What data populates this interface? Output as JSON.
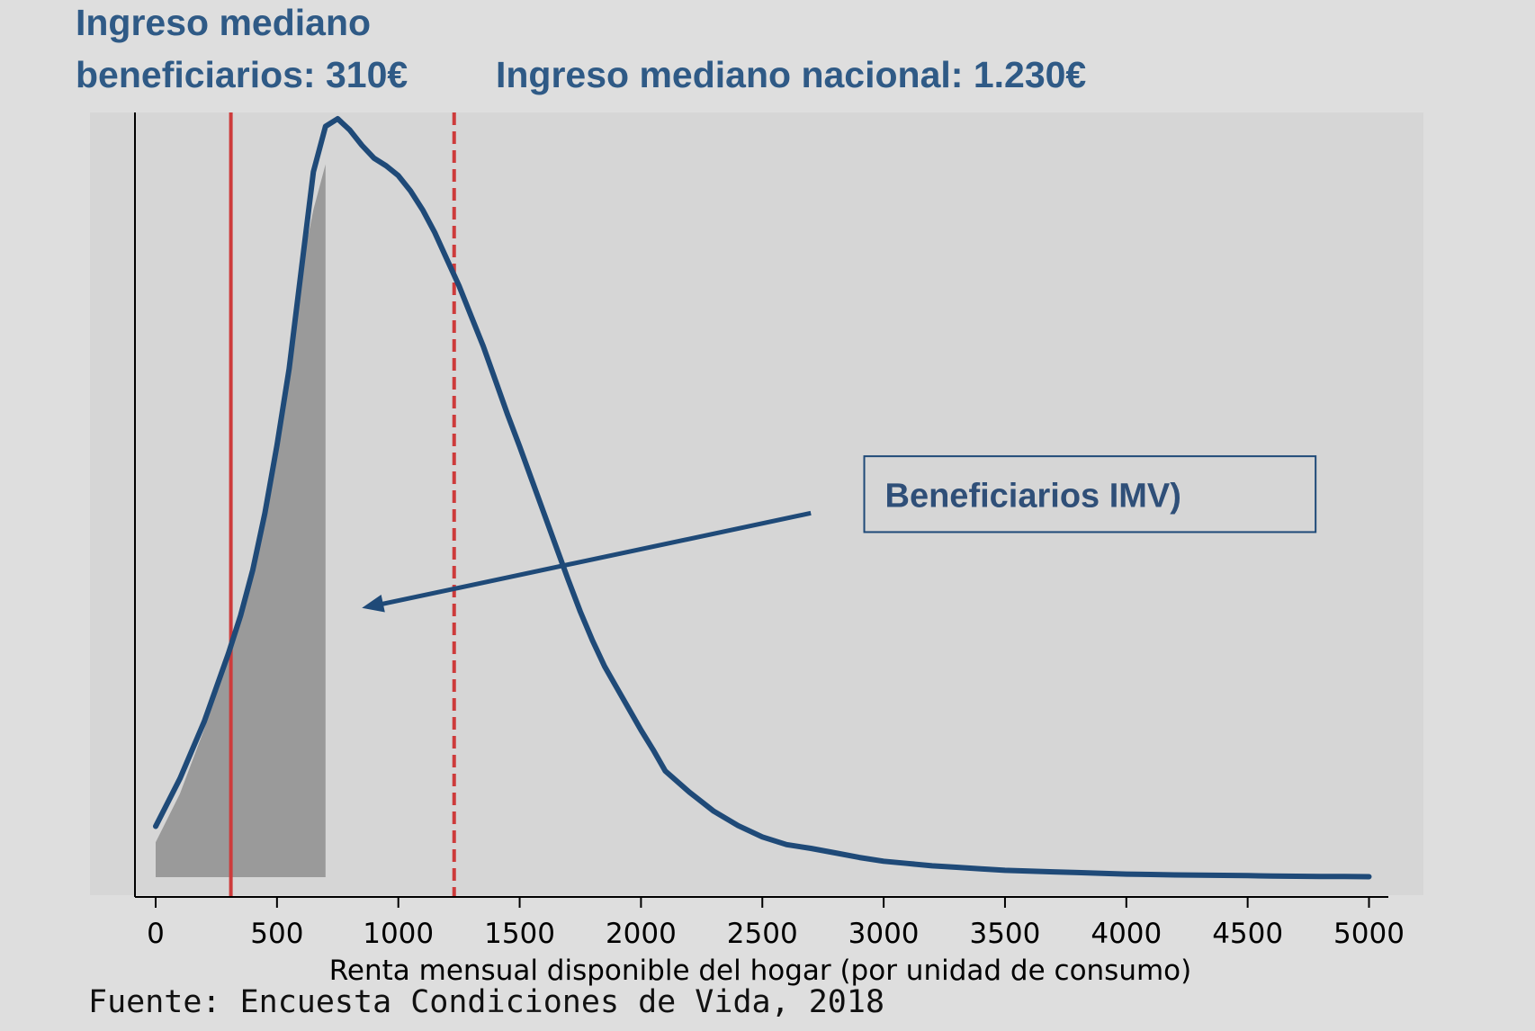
{
  "header": {
    "beneficiarios_line1": "Ingreso mediano",
    "beneficiarios_line2": "beneficiarios: 310€",
    "nacional": "Ingreso mediano nacional: 1.230€"
  },
  "annotation": {
    "label": "Beneficiarios IMV)"
  },
  "source": "Fuente: Encuesta Condiciones de Vida, 2018",
  "colors": {
    "background": "#dedede",
    "plot_background": "#d6d6d6",
    "curve": "#1f4a78",
    "median_lines": "#cd3b3b",
    "shaded_area": "#9a9a9a",
    "title_text": "#2f5a86"
  },
  "chart_data": {
    "type": "line",
    "title": "",
    "xlabel": "Renta mensual disponible del hogar (por unidad de consumo)",
    "ylabel": "",
    "xlim": [
      -90,
      5100
    ],
    "ylim": [
      0,
      1
    ],
    "xticks": [
      0,
      500,
      1000,
      1500,
      2000,
      2500,
      3000,
      3500,
      4000,
      4500,
      5000
    ],
    "y_axis_tick_labels": false,
    "grid": false,
    "series": [
      {
        "x": [
          0,
          100,
          200,
          300,
          350,
          400,
          450,
          500,
          550,
          600,
          650,
          700,
          750,
          800,
          850,
          900,
          950,
          1000,
          1050,
          1100,
          1150,
          1200,
          1250,
          1300,
          1350,
          1400,
          1450,
          1500,
          1550,
          1600,
          1650,
          1700,
          1750,
          1800,
          1850,
          1900,
          1950,
          2000,
          2050,
          2100,
          2200,
          2300,
          2400,
          2500,
          2600,
          2700,
          2800,
          2900,
          3000,
          3100,
          3200,
          3300,
          3400,
          3500,
          3600,
          3700,
          3800,
          3900,
          4000,
          4100,
          4200,
          4300,
          4400,
          4500,
          4600,
          4700,
          4800,
          4900,
          5000
        ],
        "y": [
          0.067,
          0.13,
          0.205,
          0.295,
          0.345,
          0.405,
          0.48,
          0.57,
          0.67,
          0.8,
          0.93,
          0.99,
          1.0,
          0.985,
          0.965,
          0.948,
          0.938,
          0.925,
          0.905,
          0.88,
          0.85,
          0.815,
          0.78,
          0.74,
          0.7,
          0.655,
          0.61,
          0.568,
          0.524,
          0.48,
          0.436,
          0.392,
          0.35,
          0.312,
          0.278,
          0.25,
          0.222,
          0.194,
          0.168,
          0.14,
          0.112,
          0.087,
          0.068,
          0.053,
          0.043,
          0.038,
          0.032,
          0.026,
          0.021,
          0.018,
          0.015,
          0.013,
          0.011,
          0.009,
          0.008,
          0.007,
          0.006,
          0.005,
          0.004,
          0.0036,
          0.003,
          0.0027,
          0.0024,
          0.002,
          0.0016,
          0.0012,
          0.001,
          0.0008,
          0.0006
        ]
      }
    ],
    "shaded_region": {
      "x_from": 0,
      "x_to": 700,
      "x": [
        0,
        100,
        200,
        300,
        350,
        400,
        450,
        500,
        550,
        600,
        650,
        700
      ],
      "y": [
        0.046,
        0.11,
        0.195,
        0.29,
        0.345,
        0.405,
        0.48,
        0.57,
        0.67,
        0.8,
        0.88,
        0.94
      ]
    },
    "vlines": [
      {
        "x": 310,
        "style": "solid"
      },
      {
        "x": 1230,
        "style": "dashed"
      }
    ],
    "arrow": {
      "from": [
        2700,
        0.48
      ],
      "to": [
        850,
        0.355
      ]
    },
    "annotation_box": {
      "x_from": 2920,
      "x_to": 4780,
      "y_from": 0.455,
      "y_to": 0.555
    }
  }
}
